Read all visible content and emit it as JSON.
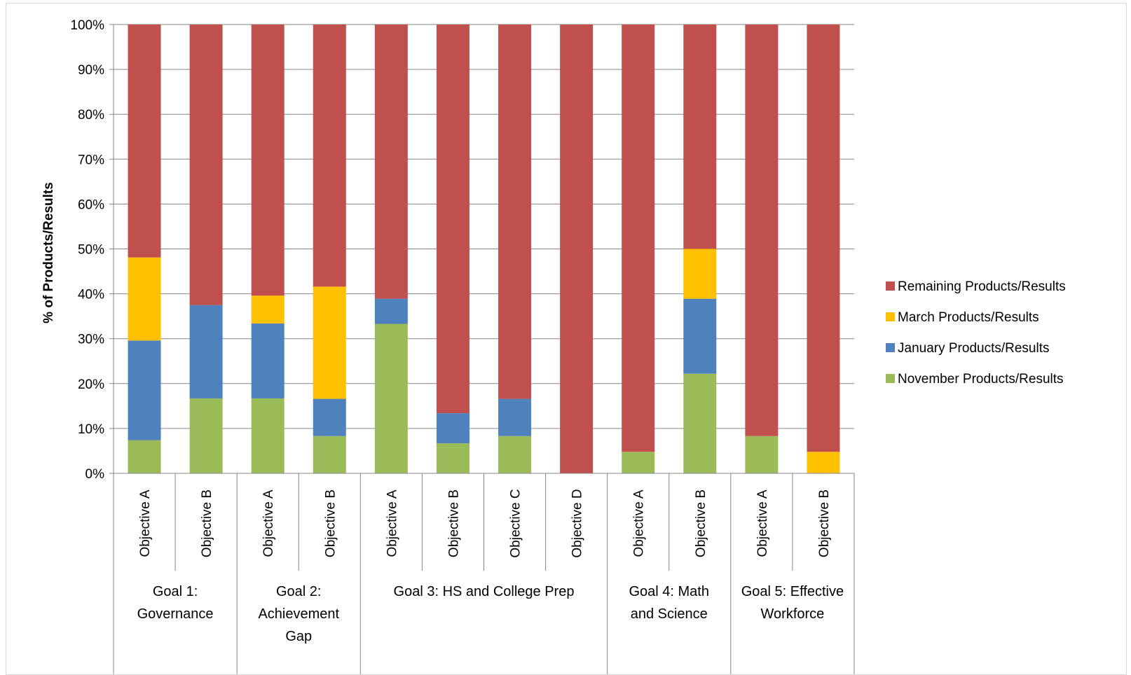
{
  "chart_data": {
    "type": "bar",
    "stacked": true,
    "percent_stacked": true,
    "categories": [
      "Objective A",
      "Objective B",
      "Objective A",
      "Objective B",
      "Objective A",
      "Objective B",
      "Objective C",
      "Objective D",
      "Objective A",
      "Objective B",
      "Objective A",
      "Objective B"
    ],
    "groups": [
      {
        "label_lines": [
          "Goal 1:",
          "Governance"
        ],
        "count": 2
      },
      {
        "label_lines": [
          "Goal 2:",
          "Achievement",
          "Gap"
        ],
        "count": 2
      },
      {
        "label_lines": [
          "Goal 3: HS and College Prep"
        ],
        "count": 4
      },
      {
        "label_lines": [
          "Goal 4: Math",
          "and Science"
        ],
        "count": 2
      },
      {
        "label_lines": [
          "Goal 5: Effective",
          "Workforce"
        ],
        "count": 2
      }
    ],
    "series": [
      {
        "name": "November Products/Results",
        "color": "#9bbb59",
        "values": [
          7.4,
          16.7,
          16.7,
          8.3,
          33.3,
          6.7,
          8.3,
          0,
          4.8,
          22.2,
          8.3,
          0
        ]
      },
      {
        "name": "January Products/Results",
        "color": "#4f81bd",
        "values": [
          22.2,
          20.8,
          16.7,
          8.3,
          5.6,
          6.7,
          8.3,
          0,
          0,
          16.7,
          0,
          0
        ]
      },
      {
        "name": "March Products/Results",
        "color": "#ffc000",
        "values": [
          18.5,
          0,
          6.2,
          25.0,
          0,
          0,
          0,
          0,
          0,
          11.1,
          0,
          4.8
        ]
      },
      {
        "name": "Remaining Products/Results",
        "color": "#c0504d",
        "values": [
          51.9,
          62.5,
          60.4,
          58.4,
          61.1,
          86.6,
          83.4,
          100,
          95.2,
          50.0,
          91.7,
          95.2
        ]
      }
    ],
    "legend_order": [
      "Remaining Products/Results",
      "March Products/Results",
      "January Products/Results",
      "November Products/Results"
    ],
    "y_ticks": [
      "0%",
      "10%",
      "20%",
      "30%",
      "40%",
      "50%",
      "60%",
      "70%",
      "80%",
      "90%",
      "100%"
    ],
    "ylabel": "% of Products/Results",
    "xlabel": "",
    "title": "",
    "ylim": [
      0,
      100
    ],
    "grid": true,
    "legend_position": "right"
  }
}
